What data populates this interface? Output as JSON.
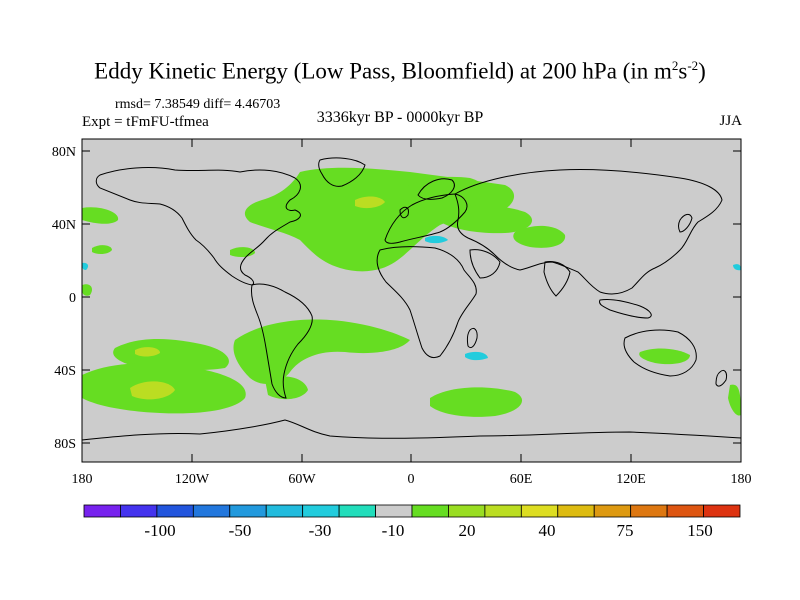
{
  "title": {
    "main": "Eddy Kinetic Energy (Low Pass, Bloomfield) at 200 hPa (in m",
    "sup1": "2",
    "mid": "s",
    "sup2": "-2",
    "end": ")"
  },
  "stats": "rmsd= 7.38549 diff= 4.46703",
  "expt": "Expt = tFmFU-tfmea",
  "period": "3336kyr BP - 0000kyr BP",
  "season": "JJA",
  "lat_labels": [
    "80N",
    "40N",
    "0",
    "40S",
    "80S"
  ],
  "lon_labels": [
    "180",
    "120W",
    "60W",
    "0",
    "60E",
    "120E",
    "180"
  ],
  "colors": {
    "ocean_land": "#cccccc",
    "green_light": "#66dd22",
    "green_yellow": "#bbdd22",
    "cyan": "#22ccdd"
  },
  "colorbar": {
    "colors": [
      "#7722ee",
      "#4433ee",
      "#2255dd",
      "#2277dd",
      "#2299dd",
      "#22bbdd",
      "#22ccdd",
      "#22ddbb",
      "#cccccc",
      "#66dd22",
      "#99dd22",
      "#bbdd22",
      "#dddd22",
      "#ddbb11",
      "#dd9911",
      "#dd7711",
      "#dd5511",
      "#dd3311"
    ],
    "labels": [
      "-100",
      "-50",
      "-30",
      "-10",
      "20",
      "40",
      "75",
      "150"
    ]
  }
}
